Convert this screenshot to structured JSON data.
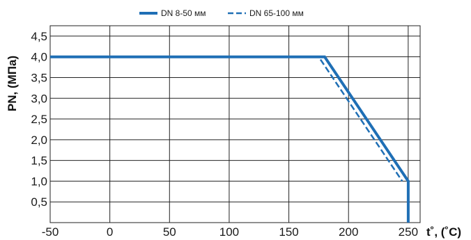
{
  "chart_data": {
    "type": "line",
    "title": "",
    "xlabel_main": "t˚",
    "xlabel_unit": ", (˚C)",
    "ylabel_main": "PN",
    "ylabel_unit": ", (МПа)",
    "xlim": [
      -50,
      260
    ],
    "ylim": [
      0,
      4.75
    ],
    "x_ticks": [
      -50,
      0,
      50,
      100,
      150,
      200,
      250
    ],
    "x_tick_labels": [
      "-50",
      "0",
      "50",
      "100",
      "150",
      "200",
      "250"
    ],
    "y_ticks": [
      0.5,
      1.0,
      1.5,
      2.0,
      2.5,
      3.0,
      3.5,
      4.0,
      4.5
    ],
    "y_tick_labels": [
      "0,5",
      "1,0",
      "1,5",
      "2,0",
      "2,5",
      "3,0",
      "3,5",
      "4,0",
      "4,5"
    ],
    "grid": true,
    "legend_position": "top",
    "series": [
      {
        "name": "DN 8-50 мм",
        "style": "solid",
        "color": "#1f6fb5",
        "x": [
          -50,
          180,
          250,
          250
        ],
        "y": [
          4.0,
          4.0,
          1.0,
          0.0
        ]
      },
      {
        "name": "DN 65-100 мм",
        "style": "dashed",
        "color": "#1f6fb5",
        "x": [
          -50,
          175,
          245
        ],
        "y": [
          4.0,
          4.0,
          1.0
        ]
      }
    ]
  }
}
